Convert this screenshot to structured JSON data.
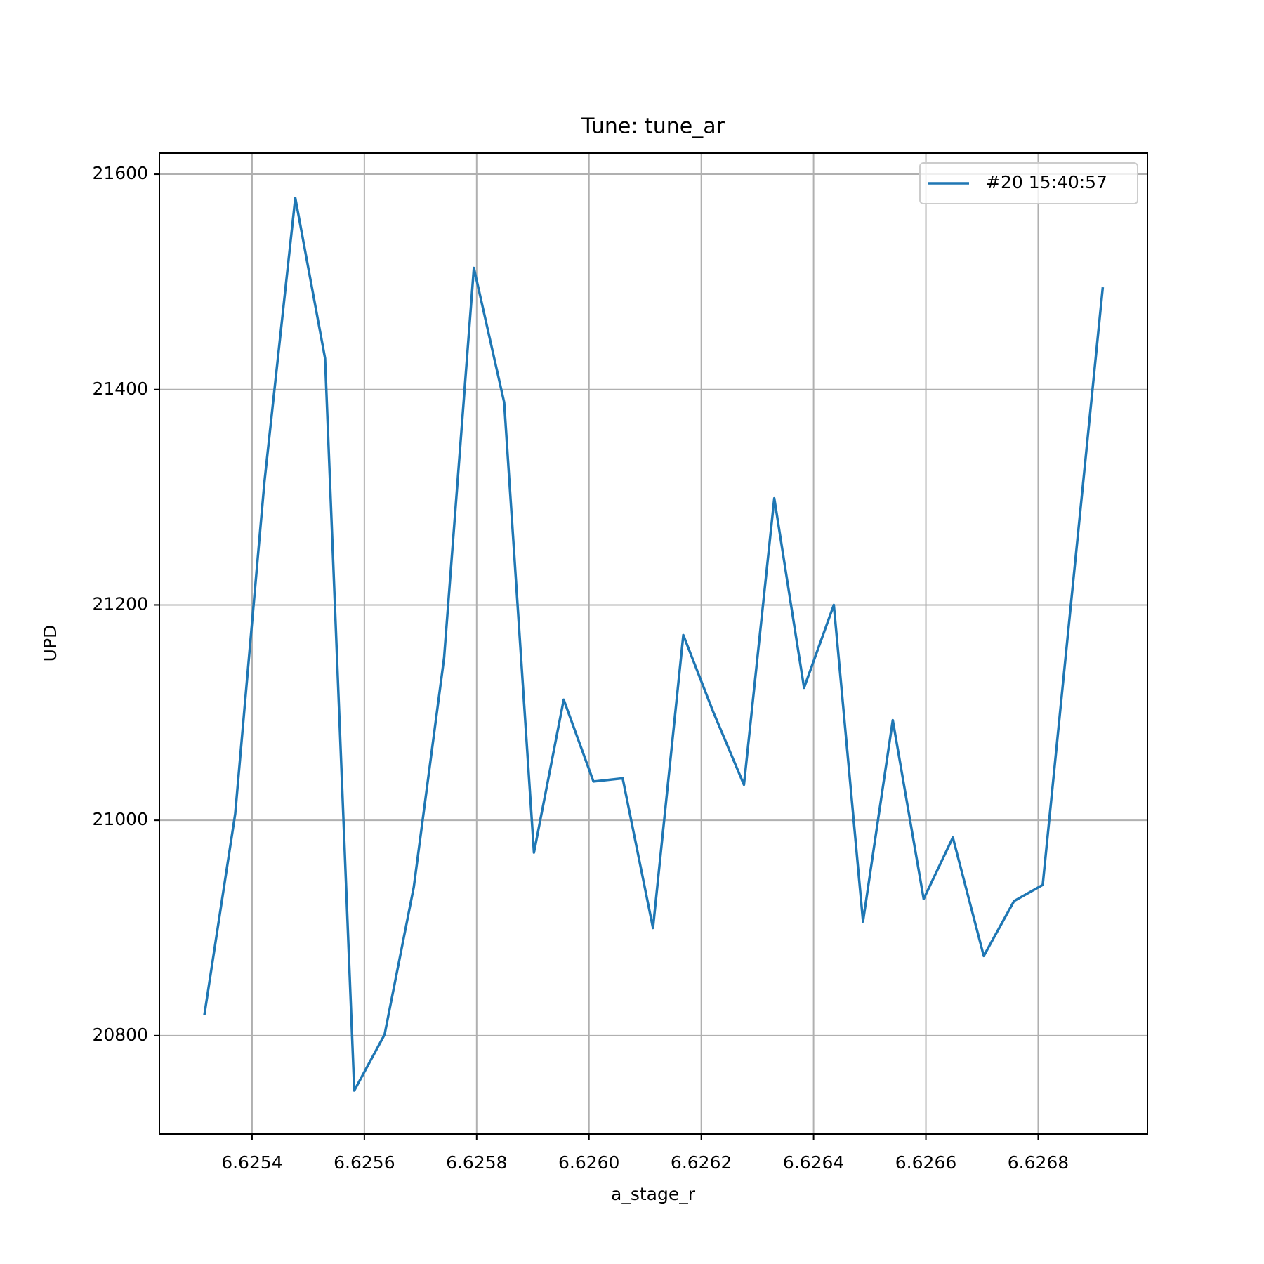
{
  "chart_data": {
    "type": "line",
    "title": "Tune: tune_ar",
    "x_label": "a_stage_r",
    "y_label": "UPD",
    "x": [
      6.625315,
      6.62537,
      6.625422,
      6.625477,
      6.62553,
      6.625582,
      6.625636,
      6.625688,
      6.625742,
      6.625795,
      6.625849,
      6.625902,
      6.625955,
      6.626008,
      6.62606,
      6.626114,
      6.626168,
      6.626221,
      6.626276,
      6.62633,
      6.626383,
      6.626436,
      6.626488,
      6.626541,
      6.626596,
      6.626648,
      6.626703,
      6.626757,
      6.626808,
      6.626915
    ],
    "series": [
      {
        "name": "#20 15:40:57",
        "color": "#1f77b4",
        "values": [
          20819,
          21006,
          21314,
          21578,
          21429,
          20749,
          20801,
          20938,
          21151,
          21513,
          21388,
          20970,
          21112,
          21036,
          21039,
          20900,
          21172,
          21101,
          21033,
          21299,
          21123,
          21200,
          20906,
          21093,
          20927,
          20984,
          20874,
          20925,
          20940,
          21495
        ]
      }
    ],
    "xlim": [
      6.625235,
      6.6269945
    ],
    "ylim": [
      20708.6,
      21619.6
    ],
    "xticks": [
      6.6254,
      6.6256,
      6.6258,
      {
        "value": 6.626,
        "label": "6.6260"
      },
      6.6262,
      6.6264,
      6.6266,
      6.6268
    ],
    "yticks": [
      20800,
      21000,
      21200,
      21400,
      21600
    ],
    "grid": true,
    "legend": "upper right"
  }
}
